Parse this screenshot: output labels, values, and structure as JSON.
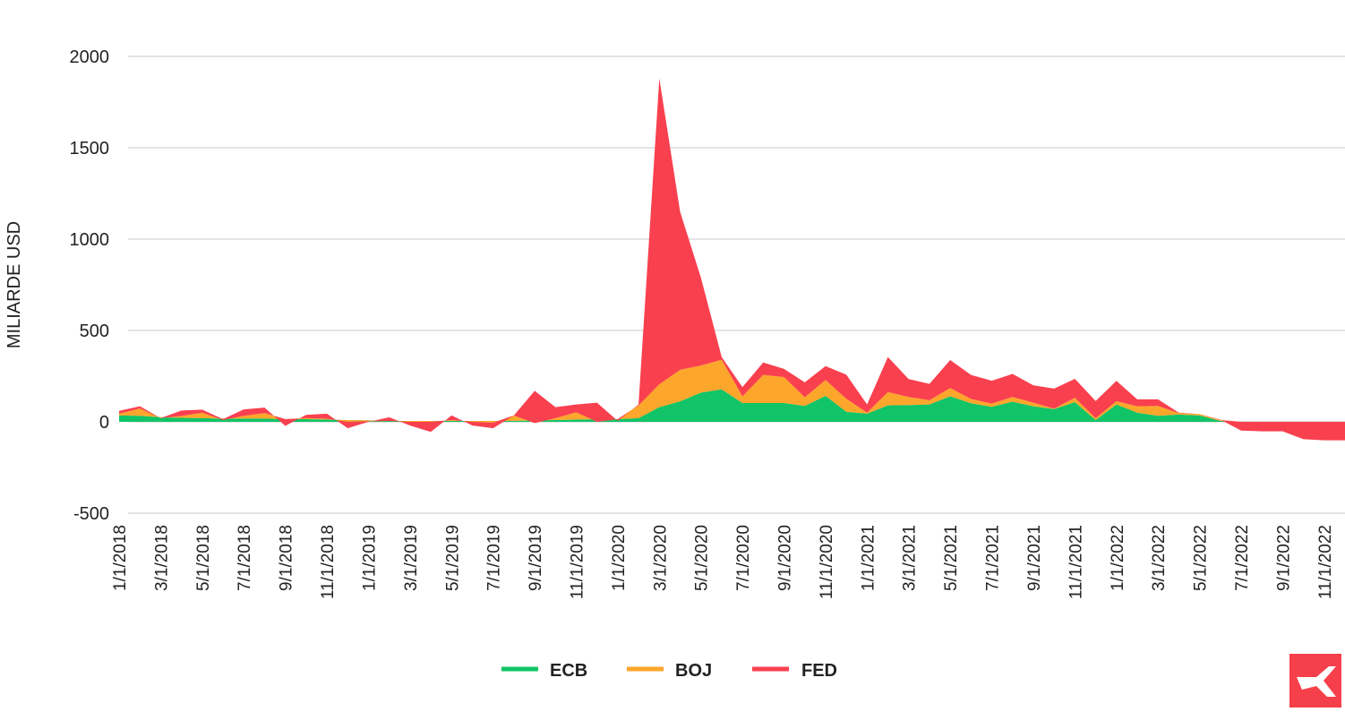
{
  "chart_data": {
    "type": "area",
    "stacked": true,
    "title": "",
    "xlabel": "",
    "ylabel": "MILIARDE USD",
    "ylim": [
      -500,
      2000
    ],
    "yticks": [
      2000,
      1500,
      1000,
      500,
      0,
      -500
    ],
    "grid": true,
    "legend_position": "bottom",
    "x_tick_labels": [
      "1/1/2018",
      "3/1/2018",
      "5/1/2018",
      "7/1/2018",
      "9/1/2018",
      "11/1/2018",
      "1/1/2019",
      "3/1/2019",
      "5/1/2019",
      "7/1/2019",
      "9/1/2019",
      "11/1/2019",
      "1/1/2020",
      "3/1/2020",
      "5/1/2020",
      "7/1/2020",
      "9/1/2020",
      "11/1/2020",
      "1/1/2021",
      "3/1/2021",
      "5/1/2021",
      "7/1/2021",
      "9/1/2021",
      "11/1/2021",
      "1/1/2022",
      "3/1/2022",
      "5/1/2022",
      "7/1/2022",
      "9/1/2022",
      "11/1/2022"
    ],
    "x_start": "1/1/2018",
    "x_end": "12/1/2022",
    "series": [
      {
        "name": "ECB",
        "color": "#10c467",
        "values": [
          35,
          33,
          25,
          22,
          20,
          18,
          18,
          18,
          15,
          15,
          12,
          10,
          8,
          5,
          5,
          5,
          5,
          5,
          5,
          5,
          8,
          10,
          12,
          15,
          15,
          20,
          80,
          112,
          160,
          178,
          103,
          103,
          103,
          87,
          142,
          55,
          45,
          90,
          92,
          95,
          140,
          102,
          82,
          110,
          85,
          70,
          108,
          10,
          95,
          50,
          33,
          40,
          35,
          5,
          0,
          0,
          0,
          0,
          0,
          0
        ]
      },
      {
        "name": "BOJ",
        "color": "#fca62b",
        "values": [
          10,
          40,
          -5,
          10,
          30,
          -8,
          15,
          30,
          0,
          5,
          5,
          -10,
          -5,
          0,
          -5,
          -5,
          5,
          -5,
          -10,
          30,
          -15,
          10,
          40,
          -15,
          0,
          70,
          125,
          173,
          148,
          162,
          37,
          154,
          142,
          47,
          87,
          71,
          5,
          73,
          44,
          23,
          45,
          23,
          18,
          26,
          20,
          2,
          24,
          10,
          18,
          35,
          54,
          8,
          7,
          5,
          0,
          0,
          0,
          0,
          0,
          0
        ]
      },
      {
        "name": "FED",
        "color": "#f9404f",
        "values": [
          15,
          12,
          0,
          30,
          17,
          5,
          35,
          30,
          -37,
          18,
          28,
          -35,
          -3,
          20,
          -20,
          -55,
          25,
          -20,
          -30,
          0,
          177,
          60,
          43,
          105,
          -10,
          5,
          1675,
          865,
          482,
          15,
          50,
          68,
          45,
          82,
          76,
          132,
          45,
          192,
          98,
          90,
          153,
          132,
          125,
          126,
          95,
          110,
          103,
          94,
          111,
          38,
          36,
          2,
          0,
          2,
          -48,
          -52,
          -52,
          -95,
          -101,
          -101
        ]
      }
    ]
  },
  "legend": {
    "items": [
      "ECB",
      "BOJ",
      "FED"
    ]
  },
  "logo": {
    "text": "X",
    "color": "#f5404c"
  }
}
